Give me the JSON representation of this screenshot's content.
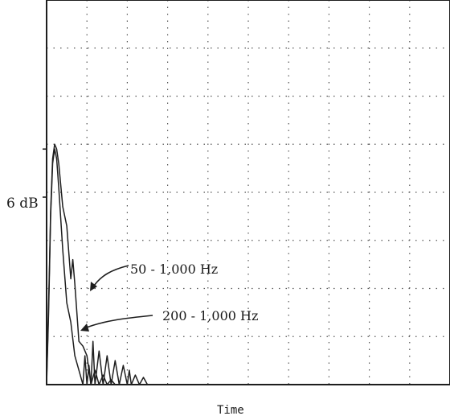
{
  "chart_data": {
    "type": "line",
    "xlabel": "Time",
    "scale_label": "6 dB",
    "grid": true,
    "grid_style": "dotted",
    "colors": {
      "trace": "#1e1e1e",
      "grid": "#555555",
      "background": "#ffffff"
    },
    "series": [
      {
        "name": "50 - 1,000 Hz",
        "x": [
          0.0,
          0.03,
          0.07,
          0.1,
          0.15,
          0.2,
          0.25,
          0.3,
          0.4,
          0.5,
          0.6,
          0.65,
          0.7,
          0.8,
          0.9,
          1.0,
          1.1,
          1.15,
          1.2,
          1.3,
          1.4,
          1.5,
          1.6,
          1.7,
          1.8,
          1.9,
          2.0,
          2.05,
          2.1,
          2.2,
          2.3,
          2.4,
          2.5
        ],
        "y": [
          0.1,
          1.0,
          2.4,
          3.6,
          4.7,
          5.0,
          4.9,
          4.6,
          3.7,
          3.3,
          2.2,
          2.6,
          2.1,
          0.9,
          0.8,
          0.6,
          0.0,
          0.9,
          0.0,
          0.7,
          0.0,
          0.6,
          0.0,
          0.5,
          0.0,
          0.4,
          0.0,
          0.3,
          0.0,
          0.2,
          0.0,
          0.15,
          0.0
        ]
      },
      {
        "name": "200 - 1,000 Hz",
        "x": [
          0.0,
          0.05,
          0.1,
          0.15,
          0.2,
          0.25,
          0.3,
          0.4,
          0.5,
          0.6,
          0.7,
          0.8,
          0.9,
          0.95,
          1.0,
          1.05,
          1.1,
          1.2,
          1.3,
          1.4,
          1.5,
          1.6,
          1.7
        ],
        "y": [
          0.0,
          1.5,
          3.5,
          4.6,
          4.9,
          4.7,
          4.1,
          2.8,
          1.7,
          1.3,
          0.6,
          0.3,
          0.0,
          0.6,
          0.0,
          0.4,
          0.0,
          0.3,
          0.0,
          0.2,
          0.0,
          0.1,
          0.0
        ]
      }
    ]
  }
}
